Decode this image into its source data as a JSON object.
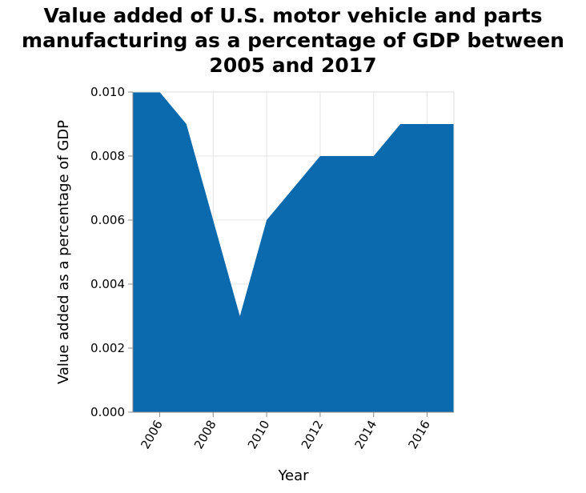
{
  "chart_data": {
    "type": "area",
    "title_lines": [
      "Value added of U.S. motor vehicle and parts",
      "manufacturing as a percentage of GDP between",
      "2005 and 2017"
    ],
    "xlabel": "Year",
    "ylabel": "Value added as a percentage of GDP",
    "x": [
      2005,
      2006,
      2007,
      2008,
      2009,
      2010,
      2011,
      2012,
      2013,
      2014,
      2015,
      2016,
      2017
    ],
    "values": [
      0.01,
      0.01,
      0.009,
      0.006,
      0.003,
      0.006,
      0.007,
      0.008,
      0.008,
      0.008,
      0.009,
      0.009,
      0.009
    ],
    "xlim": [
      2005,
      2017
    ],
    "ylim": [
      0,
      0.01
    ],
    "x_ticks": [
      2006,
      2008,
      2010,
      2012,
      2014,
      2016
    ],
    "y_ticks": [
      0,
      0.002,
      0.004,
      0.006,
      0.008,
      0.01
    ],
    "y_tick_labels": [
      "0.000",
      "0.002",
      "0.004",
      "0.006",
      "0.008",
      "0.010"
    ],
    "grid": true,
    "fill_color": "#0a6aad",
    "grid_color": "#e6e6e6",
    "axis_color": "#888888"
  }
}
